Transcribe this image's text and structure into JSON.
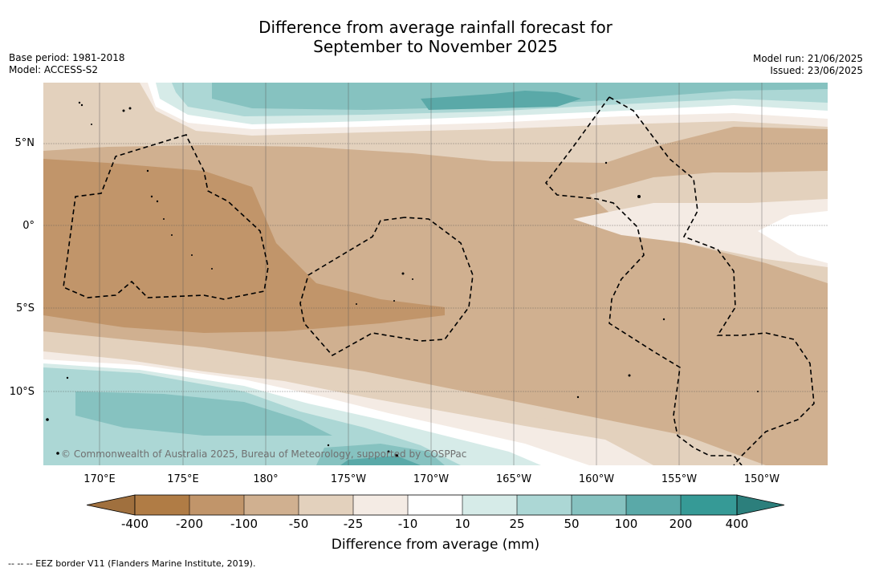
{
  "title_line1": "Difference from average rainfall forecast for",
  "title_line2": "September to November 2025",
  "meta_left": {
    "base_period": "Base period: 1981-2018",
    "model": "Model: ACCESS-S2"
  },
  "meta_right": {
    "model_run": "Model run: 21/06/2025",
    "issued": "Issued: 23/06/2025"
  },
  "map": {
    "lat_labels": [
      "5°N",
      "0°",
      "5°S",
      "10°S"
    ],
    "lon_labels": [
      "170°E",
      "175°E",
      "180°",
      "175°W",
      "170°W",
      "165°W",
      "160°W",
      "155°W",
      "150°W"
    ],
    "copyright": "© Commonwealth of Australia 2025, Bureau of Meteorology, supported by COSPPac",
    "eez_border_style": "dashed black"
  },
  "legend": {
    "title": "Difference from average (mm)",
    "ticks": [
      "-400",
      "-200",
      "-100",
      "-50",
      "-25",
      "-10",
      "10",
      "25",
      "50",
      "100",
      "200",
      "400"
    ],
    "colors": [
      "#a0703e",
      "#b07c45",
      "#c1956a",
      "#d0b090",
      "#e3d1bd",
      "#f4ebe4",
      "#ffffff",
      "#d6ebe8",
      "#acd7d5",
      "#86c2c0",
      "#5aa9a8",
      "#369a96",
      "#2c7f7c"
    ]
  },
  "footnote": "--  --  -- EEZ border V11 (Flanders Marine Institute, 2019)."
}
